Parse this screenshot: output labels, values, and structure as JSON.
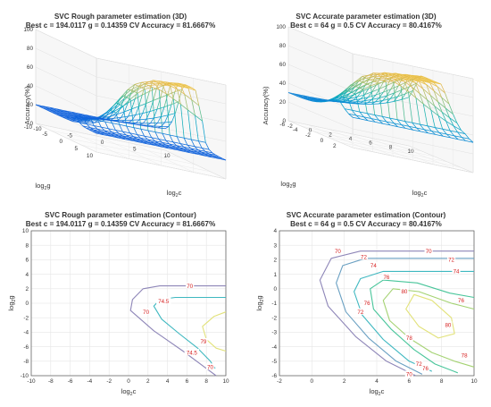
{
  "chart_data": [
    {
      "type": "surface",
      "title": "SVC Rough parameter estimation (3D)",
      "subtitle": "Best c = 194.0117 g = 0.14359 CV Accuracy = 81.6667%",
      "xlabel": "log2c",
      "ylabel": "log2g",
      "zlabel": "Accuracy(%)",
      "xlim": [
        -10,
        10
      ],
      "ylim": [
        -10,
        10
      ],
      "zlim": [
        0,
        100
      ],
      "xticks": [
        "-10",
        "-5",
        "0",
        "5",
        "10"
      ],
      "yticks": [
        "-10",
        "-5",
        "0",
        "5",
        "10"
      ],
      "zticks": [
        "0",
        "20",
        "40",
        "60",
        "80",
        "100"
      ],
      "grid": true,
      "best": {
        "c": 194.0117,
        "g": 0.14359,
        "accuracy": 81.6667
      }
    },
    {
      "type": "surface",
      "title": "SVC Accurate parameter estimation (3D)",
      "subtitle": "Best c = 64 g = 0.5 CV Accuracy = 80.4167%",
      "xlabel": "log2c",
      "ylabel": "log2g",
      "zlabel": "Accuracy(%)",
      "xlim": [
        -2,
        10
      ],
      "ylim": [
        -6,
        4
      ],
      "zlim": [
        0,
        100
      ],
      "xticks": [
        "-2",
        "0",
        "2",
        "4",
        "6",
        "8",
        "10"
      ],
      "yticks": [
        "-6",
        "-4",
        "-2",
        "0",
        "2"
      ],
      "zticks": [
        "0",
        "20",
        "40",
        "60",
        "80",
        "100"
      ],
      "grid": true,
      "best": {
        "c": 64,
        "g": 0.5,
        "accuracy": 80.4167
      }
    },
    {
      "type": "contour",
      "title": "SVC Rough parameter estimation (Contour)",
      "subtitle": "Best c = 194.0117 g = 0.14359 CV Accuracy = 81.6667%",
      "xlabel": "log2c",
      "ylabel": "log2g",
      "xlim": [
        -10,
        10
      ],
      "ylim": [
        -10,
        10
      ],
      "xticks": [
        "-10",
        "-8",
        "-6",
        "-4",
        "-2",
        "0",
        "2",
        "4",
        "6",
        "8",
        "10"
      ],
      "yticks": [
        "-10",
        "-8",
        "-6",
        "-4",
        "-2",
        "0",
        "2",
        "4",
        "6",
        "8",
        "10"
      ],
      "grid": true,
      "levels": [
        {
          "value": "70",
          "color": "#8e86b8",
          "points": [
            [
              10,
              2.4
            ],
            [
              3.2,
              2.4
            ],
            [
              1.5,
              2
            ],
            [
              0.4,
              0.5
            ],
            [
              0.2,
              -1
            ],
            [
              2.6,
              -3.8
            ],
            [
              5.6,
              -6.6
            ],
            [
              8,
              -9
            ],
            [
              9,
              -10
            ]
          ]
        },
        {
          "value": "74.5",
          "color": "#3fb8c0",
          "points": [
            [
              10,
              0.8
            ],
            [
              4.8,
              0.8
            ],
            [
              3.2,
              0.5
            ],
            [
              2.6,
              -0.4
            ],
            [
              3.4,
              -2.2
            ],
            [
              5.2,
              -4.2
            ],
            [
              7.1,
              -6.2
            ],
            [
              8.4,
              -8
            ],
            [
              8.9,
              -9
            ]
          ]
        },
        {
          "value": "79",
          "color": "#e2e27a",
          "points": [
            [
              10,
              -1.2
            ],
            [
              8.8,
              -1.8
            ],
            [
              7.6,
              -3.2
            ],
            [
              8,
              -5
            ],
            [
              9,
              -6.2
            ],
            [
              10,
              -6.6
            ]
          ]
        }
      ],
      "labels": [
        {
          "text": "70",
          "x": 6.3,
          "y": 2.4
        },
        {
          "text": "74.5",
          "x": 3.6,
          "y": 0.3
        },
        {
          "text": "70",
          "x": 1.8,
          "y": -1.2
        },
        {
          "text": "79",
          "x": 7.7,
          "y": -5.3
        },
        {
          "text": "74.5",
          "x": 6.5,
          "y": -6.8
        },
        {
          "text": "70",
          "x": 8.4,
          "y": -8.8
        }
      ]
    },
    {
      "type": "contour",
      "title": "SVC Accurate parameter estimation (Contour)",
      "subtitle": "Best c = 64 g = 0.5 CV Accuracy = 80.4167%",
      "xlabel": "log2c",
      "ylabel": "log2g",
      "xlim": [
        -2,
        10
      ],
      "ylim": [
        -6,
        4
      ],
      "xticks": [
        "-2",
        "0",
        "2",
        "4",
        "6",
        "8",
        "10"
      ],
      "yticks": [
        "-6",
        "-5",
        "-4",
        "-3",
        "-2",
        "-1",
        "0",
        "1",
        "2",
        "3",
        "4"
      ],
      "grid": true,
      "levels": [
        {
          "value": "70",
          "color": "#8e86b8",
          "points": [
            [
              10,
              2.6
            ],
            [
              3,
              2.6
            ],
            [
              1.2,
              2.1
            ],
            [
              0.5,
              0.6
            ],
            [
              1,
              -1.2
            ],
            [
              2.7,
              -3.3
            ],
            [
              4.6,
              -5
            ],
            [
              6.4,
              -6
            ]
          ]
        },
        {
          "value": "72",
          "color": "#6aa0c2",
          "points": [
            [
              10,
              2.1
            ],
            [
              3.3,
              2.1
            ],
            [
              1.9,
              1.6
            ],
            [
              1.5,
              0.4
            ],
            [
              2.1,
              -1.6
            ],
            [
              3.5,
              -3.4
            ],
            [
              5.2,
              -5
            ],
            [
              6.8,
              -5.9
            ]
          ]
        },
        {
          "value": "74",
          "color": "#3fb8c0",
          "points": [
            [
              10,
              1.2
            ],
            [
              4.4,
              1.2
            ],
            [
              3,
              0.7
            ],
            [
              2.6,
              -0.2
            ],
            [
              3.1,
              -1.8
            ],
            [
              4.4,
              -3.5
            ],
            [
              6,
              -5
            ],
            [
              7.4,
              -5.7
            ]
          ]
        },
        {
          "value": "76",
          "color": "#48c59a",
          "points": [
            [
              10,
              -0.6
            ],
            [
              8.5,
              -0.3
            ],
            [
              6.5,
              0.4
            ],
            [
              4.4,
              0.6
            ],
            [
              3.6,
              0
            ],
            [
              3.8,
              -1.4
            ],
            [
              4.9,
              -2.8
            ],
            [
              6.3,
              -4.2
            ],
            [
              7.6,
              -5.2
            ],
            [
              9,
              -5.8
            ]
          ]
        },
        {
          "value": "78",
          "color": "#a4d272",
          "points": [
            [
              10,
              -1.4
            ],
            [
              8.6,
              -1
            ],
            [
              6.6,
              -0.2
            ],
            [
              5,
              0
            ],
            [
              4.4,
              -0.8
            ],
            [
              4.8,
              -2.2
            ],
            [
              6,
              -3.4
            ],
            [
              7.4,
              -4.4
            ],
            [
              8.8,
              -5
            ],
            [
              10,
              -5.4
            ]
          ]
        },
        {
          "value": "80",
          "color": "#e2e27a",
          "points": [
            [
              7.4,
              -0.8
            ],
            [
              6.3,
              -0.4
            ],
            [
              5.8,
              -1.4
            ],
            [
              6.6,
              -2.6
            ],
            [
              7.8,
              -3.4
            ],
            [
              8.8,
              -3.1
            ],
            [
              8.6,
              -2
            ],
            [
              7.4,
              -0.8
            ]
          ]
        }
      ],
      "labels": [
        {
          "text": "70",
          "x": 1.6,
          "y": 2.6
        },
        {
          "text": "70",
          "x": 7.2,
          "y": 2.6
        },
        {
          "text": "72",
          "x": 3.2,
          "y": 2.2
        },
        {
          "text": "72",
          "x": 8.6,
          "y": 2.0
        },
        {
          "text": "74",
          "x": 3.8,
          "y": 1.6
        },
        {
          "text": "74",
          "x": 8.9,
          "y": 1.2
        },
        {
          "text": "76",
          "x": 4.6,
          "y": 0.8
        },
        {
          "text": "76",
          "x": 3.4,
          "y": -1.0
        },
        {
          "text": "76",
          "x": 9.2,
          "y": -0.8
        },
        {
          "text": "80",
          "x": 5.7,
          "y": -0.2
        },
        {
          "text": "80",
          "x": 8.4,
          "y": -2.5
        },
        {
          "text": "72",
          "x": 3.0,
          "y": -1.6
        },
        {
          "text": "78",
          "x": 6.0,
          "y": -3.4
        },
        {
          "text": "78",
          "x": 9.4,
          "y": -4.6
        },
        {
          "text": "76",
          "x": 7.0,
          "y": -5.5
        },
        {
          "text": "72",
          "x": 6.6,
          "y": -5.2
        },
        {
          "text": "70",
          "x": 6.0,
          "y": -5.9
        }
      ]
    }
  ]
}
